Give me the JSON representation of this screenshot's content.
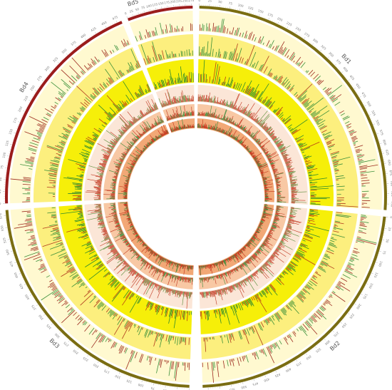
{
  "figure": {
    "chromosomes": [
      {
        "name": "Bd1",
        "length_mb": 75,
        "tick_labels": [
          "0",
          "25",
          "50",
          "75",
          "100",
          "125",
          "150",
          "175",
          "200",
          "225",
          "250",
          "275",
          "300",
          "325",
          "350",
          "375",
          "400",
          "425",
          "450",
          "475",
          "500",
          "525",
          "550",
          "575",
          "600",
          "625",
          "650",
          "675",
          "700",
          "725",
          "750"
        ],
        "outer_color": "#7a6d12",
        "tick_color": "#cfc47a"
      },
      {
        "name": "Bd2",
        "length_mb": 59,
        "tick_labels": [
          "0",
          "25",
          "50",
          "75",
          "100",
          "125",
          "150",
          "175",
          "200",
          "225",
          "250",
          "275",
          "300",
          "325",
          "350",
          "375",
          "400",
          "425",
          "450",
          "475",
          "500",
          "525",
          "550",
          "575"
        ],
        "outer_color": "#7a6d12",
        "tick_color": "#cfc47a"
      },
      {
        "name": "Bd3",
        "length_mb": 60,
        "tick_labels": [
          "0",
          "25",
          "50",
          "75",
          "100",
          "125",
          "150",
          "175",
          "200",
          "225",
          "250",
          "275",
          "300",
          "325",
          "350",
          "375",
          "400",
          "425",
          "450",
          "475",
          "500",
          "525",
          "550",
          "575"
        ],
        "outer_color": "#7a6d12",
        "tick_color": "#cfc47a"
      },
      {
        "name": "Bd4",
        "length_mb": 49,
        "tick_labels": [
          "0",
          "25",
          "50",
          "75",
          "100",
          "125",
          "150",
          "175",
          "200",
          "225",
          "250",
          "275",
          "300",
          "325",
          "350",
          "375",
          "400",
          "425",
          "450",
          "475"
        ],
        "outer_color": "#9b1c1c",
        "tick_color": "#e08a8a"
      },
      {
        "name": "Bd5",
        "length_mb": 29,
        "tick_labels": [
          "0",
          "25",
          "50",
          "75",
          "100",
          "125",
          "150",
          "175",
          "200",
          "225",
          "250",
          "275"
        ],
        "outer_color": "#9b1c1c",
        "tick_color": "#e08a8a"
      }
    ],
    "tracks": [
      {
        "id": "track-1",
        "fill": "#fff9d0",
        "bar_color": "#9c2a1e",
        "alt_bar_color": "#3a8f3a"
      },
      {
        "id": "track-2",
        "fill": "#fcef7e",
        "bar_color": "#3a8f3a",
        "alt_bar_color": "#b03a1e"
      },
      {
        "id": "track-3",
        "fill": "#f6ef09",
        "bar_color": "#2f8a2f",
        "alt_bar_color": "#b84015"
      },
      {
        "id": "track-4",
        "fill": "#fbe6d7",
        "bar_color": "#c0361e",
        "alt_bar_color": "#5a8e3a"
      },
      {
        "id": "track-5",
        "fill": "#f8c8a4",
        "bar_color": "#c0361e",
        "alt_bar_color": "#3a8a3a"
      },
      {
        "id": "track-6",
        "fill": "#f2a876",
        "bar_color": "#c2321b",
        "alt_bar_color": "#3b8a3b"
      }
    ]
  }
}
